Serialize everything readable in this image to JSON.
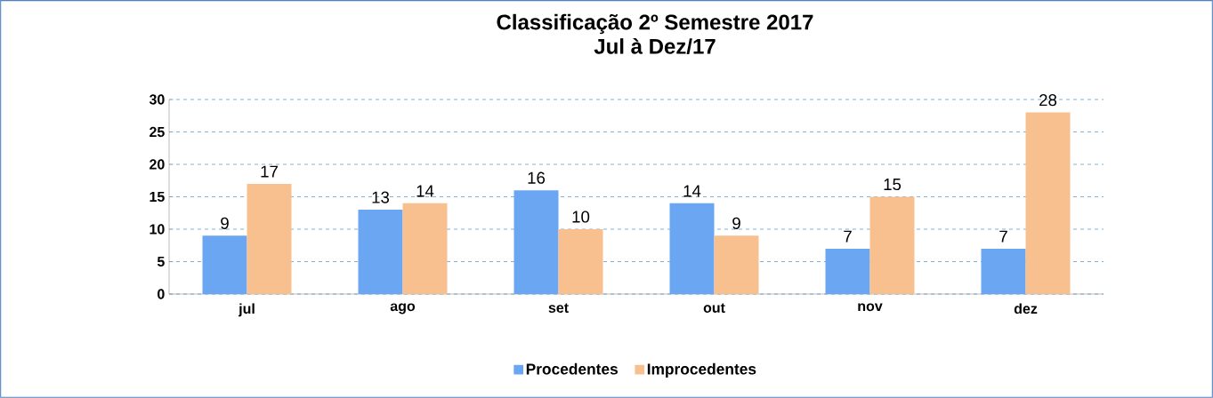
{
  "chart_data": {
    "type": "bar",
    "title": "Classificação 2º Semestre  2017",
    "subtitle": "Jul à Dez/17",
    "categories": [
      "jul",
      "ago",
      "set",
      "out",
      "nov",
      "dez"
    ],
    "series": [
      {
        "name": "Procedentes",
        "color": "#6aa6f2",
        "values": [
          9,
          13,
          16,
          14,
          7,
          7
        ]
      },
      {
        "name": "Improcedentes",
        "color": "#f9c08f",
        "values": [
          17,
          14,
          10,
          9,
          15,
          28
        ]
      }
    ],
    "ylim": [
      0,
      30
    ],
    "yticks": [
      0,
      5,
      10,
      15,
      20,
      25,
      30
    ],
    "grid": "y",
    "legend": "bottom",
    "data_labels": true
  }
}
